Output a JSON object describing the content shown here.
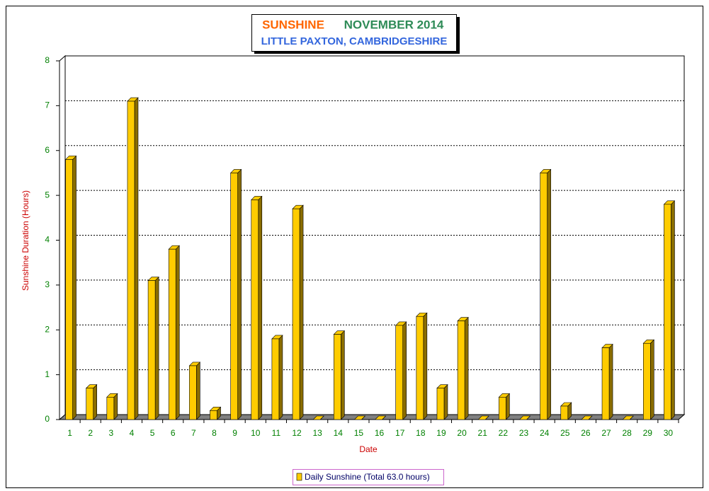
{
  "chart_data": {
    "type": "bar3d",
    "title_parts": [
      "SUNSHINE",
      "NOVEMBER 2014"
    ],
    "title_colors": [
      "#ff6600",
      "#2e8b57"
    ],
    "subtitle": "LITTLE PAXTON, CAMBRIDGESHIRE",
    "subtitle_color": "#3366dd",
    "x_label": "Date",
    "y_label": "Sunshine Duration (Hours)",
    "categories": [
      "1",
      "2",
      "3",
      "4",
      "5",
      "6",
      "7",
      "8",
      "9",
      "10",
      "11",
      "12",
      "13",
      "14",
      "15",
      "16",
      "17",
      "18",
      "19",
      "20",
      "21",
      "22",
      "23",
      "24",
      "25",
      "26",
      "27",
      "28",
      "29",
      "30"
    ],
    "series": [
      {
        "name": "Daily Sunshine (Total 63.0 hours)",
        "color": "#ffcc00",
        "values": [
          5.8,
          0.7,
          0.5,
          7.1,
          3.1,
          3.8,
          1.2,
          0.2,
          5.5,
          4.9,
          1.8,
          4.7,
          0,
          1.9,
          0,
          0,
          2.1,
          2.3,
          0.7,
          2.2,
          0,
          0.5,
          0,
          5.5,
          0.3,
          0,
          1.6,
          0,
          1.7,
          4.8
        ]
      }
    ],
    "ylim": [
      0,
      8
    ],
    "yticks": [
      0,
      1,
      2,
      3,
      4,
      5,
      6,
      7,
      8
    ],
    "grid": true,
    "legend": "bottom"
  }
}
